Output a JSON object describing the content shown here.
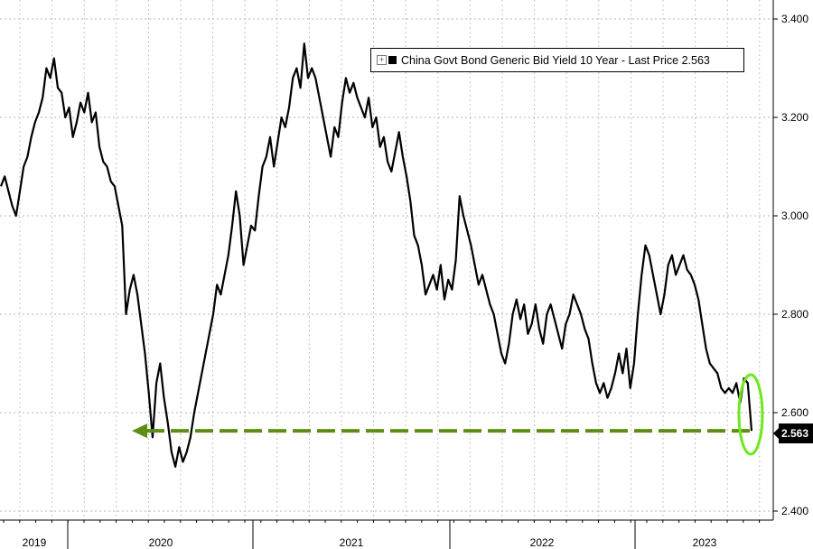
{
  "chart_data": {
    "type": "line",
    "legend_text": "China Govt Bond Generic Bid Yield 10 Year - Last Price 2.563",
    "legend_position": "top-right",
    "last_value_label": "2.563",
    "ylim": [
      2.4,
      3.4
    ],
    "y_ticks": [
      "2.400",
      "2.600",
      "2.800",
      "3.000",
      "3.200",
      "3.400"
    ],
    "x_labels": [
      "2019",
      "2020",
      "2021",
      "2022",
      "2023"
    ],
    "grid": true,
    "reference_value": 2.563,
    "series": [
      {
        "values": [
          3.06,
          3.08,
          3.05,
          3.02,
          3.0,
          3.05,
          3.1,
          3.12,
          3.16,
          3.19,
          3.21,
          3.24,
          3.3,
          3.28,
          3.32,
          3.26,
          3.25,
          3.2,
          3.22,
          3.16,
          3.19,
          3.23,
          3.21,
          3.25,
          3.19,
          3.21,
          3.14,
          3.11,
          3.1,
          3.07,
          3.06,
          3.02,
          2.98,
          2.8,
          2.85,
          2.88,
          2.84,
          2.78,
          2.72,
          2.64,
          2.55,
          2.66,
          2.7,
          2.63,
          2.58,
          2.52,
          2.49,
          2.53,
          2.5,
          2.52,
          2.55,
          2.6,
          2.64,
          2.68,
          2.72,
          2.76,
          2.8,
          2.86,
          2.84,
          2.88,
          2.92,
          2.98,
          3.05,
          3.0,
          2.9,
          2.94,
          2.98,
          2.97,
          3.04,
          3.1,
          3.12,
          3.16,
          3.1,
          3.15,
          3.2,
          3.18,
          3.22,
          3.28,
          3.3,
          3.26,
          3.35,
          3.28,
          3.3,
          3.28,
          3.24,
          3.2,
          3.16,
          3.12,
          3.18,
          3.16,
          3.23,
          3.28,
          3.25,
          3.27,
          3.24,
          3.22,
          3.2,
          3.24,
          3.18,
          3.2,
          3.14,
          3.16,
          3.11,
          3.09,
          3.13,
          3.17,
          3.12,
          3.08,
          3.03,
          2.96,
          2.94,
          2.9,
          2.84,
          2.86,
          2.88,
          2.85,
          2.9,
          2.83,
          2.87,
          2.85,
          2.91,
          3.04,
          3.0,
          2.97,
          2.94,
          2.9,
          2.86,
          2.88,
          2.85,
          2.82,
          2.8,
          2.76,
          2.72,
          2.7,
          2.74,
          2.8,
          2.83,
          2.79,
          2.82,
          2.76,
          2.78,
          2.82,
          2.77,
          2.74,
          2.8,
          2.82,
          2.79,
          2.76,
          2.73,
          2.78,
          2.8,
          2.84,
          2.82,
          2.8,
          2.77,
          2.75,
          2.7,
          2.66,
          2.64,
          2.66,
          2.63,
          2.65,
          2.68,
          2.72,
          2.68,
          2.73,
          2.65,
          2.7,
          2.8,
          2.88,
          2.94,
          2.92,
          2.88,
          2.84,
          2.8,
          2.84,
          2.9,
          2.92,
          2.88,
          2.9,
          2.92,
          2.89,
          2.88,
          2.86,
          2.83,
          2.78,
          2.73,
          2.7,
          2.69,
          2.68,
          2.65,
          2.64,
          2.65,
          2.64,
          2.66,
          2.62,
          2.67,
          2.66,
          2.563
        ]
      }
    ]
  }
}
